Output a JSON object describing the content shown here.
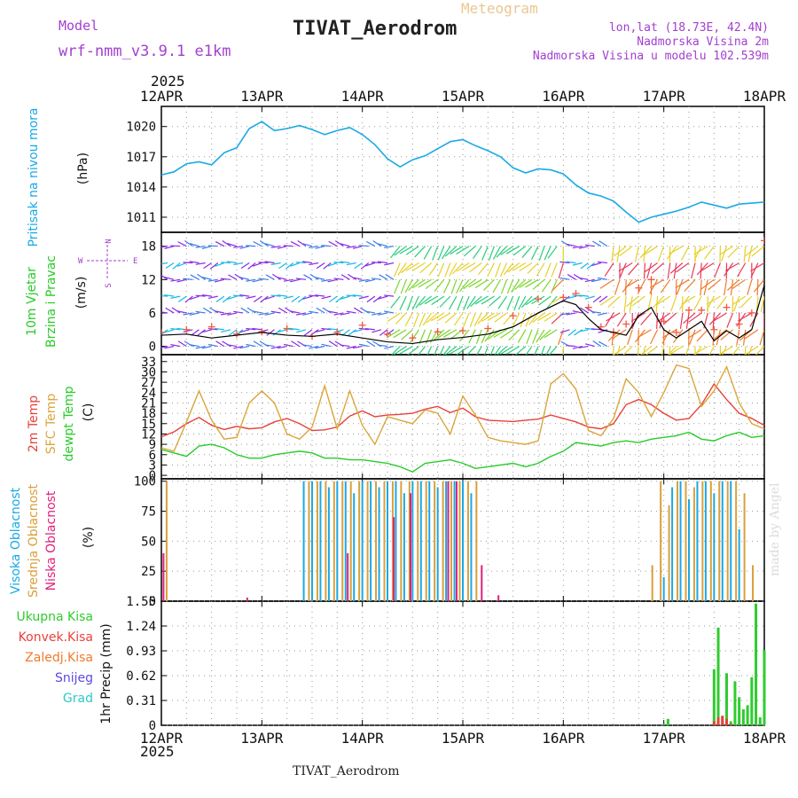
{
  "header": {
    "model_label": "Model",
    "model_name": "wrf-nmm_v3.9.1 e1km",
    "title": "TIVAT_Aerodrom",
    "meteogram_label": "Meteogram",
    "lonlat": "lon,lat (18.73E, 42.4N)",
    "altitude": "Nadmorska Visina 2m",
    "model_altitude": "Nadmorska Visina u modelu 102.539m",
    "year_label": "2025",
    "footer_title": "TIVAT_Aerodrom",
    "credit": "made by Angel"
  },
  "colors": {
    "pressure": "#19a9e6",
    "temp2m": "#e8413a",
    "sfctemp": "#dba63a",
    "dewpt": "#28cc28",
    "high_cloud": "#19a9e6",
    "mid_cloud": "#d9a03a",
    "low_cloud": "#e0207a",
    "total_rain": "#2ecc2e",
    "conv_rain": "#e8413a",
    "frz_rain": "#f07a2a",
    "snow": "#5a4ae0",
    "hail": "#2ec8c8",
    "gust": "#f05a40",
    "wind_speed": "#000000",
    "purple": "#a23fd0",
    "title_orange": "#e9c890"
  },
  "chart_data": [
    {
      "type": "line",
      "panel": "pressure",
      "ylabel": "Pritisak na nivou mora",
      "units": "(hPa)",
      "ylim": [
        1009.5,
        1022
      ],
      "yticks": [
        1011,
        1014,
        1017,
        1020
      ],
      "x_ticks": [
        "12APR",
        "13APR",
        "14APR",
        "15APR",
        "16APR",
        "17APR",
        "18APR"
      ],
      "grid": true,
      "x_hours": [
        0,
        3,
        6,
        9,
        12,
        15,
        18,
        21,
        24,
        27,
        30,
        33,
        36,
        39,
        42,
        45,
        48,
        51,
        54,
        57,
        60,
        63,
        66,
        69,
        72,
        75,
        78,
        81,
        84,
        87,
        90,
        93,
        96,
        99,
        102,
        105,
        108,
        111,
        114,
        117,
        120,
        123,
        126,
        129,
        132,
        135,
        138,
        141,
        144
      ],
      "values": [
        1015.2,
        1015.5,
        1016.3,
        1016.5,
        1016.2,
        1017.4,
        1017.9,
        1019.8,
        1020.5,
        1019.6,
        1019.8,
        1020.1,
        1019.7,
        1019.2,
        1019.6,
        1019.9,
        1019.2,
        1018.2,
        1016.8,
        1016.0,
        1016.7,
        1017.1,
        1017.8,
        1018.5,
        1018.7,
        1018.1,
        1017.6,
        1017.0,
        1015.9,
        1015.4,
        1015.8,
        1015.7,
        1015.3,
        1014.2,
        1013.4,
        1013.1,
        1012.6,
        1011.5,
        1010.5,
        1011.0,
        1011.3,
        1011.6,
        1012.0,
        1012.5,
        1012.2,
        1011.9,
        1012.3,
        1012.4,
        1012.5
      ]
    },
    {
      "type": "line",
      "panel": "wind",
      "ylabel": "10m Vjetar Brzina i Pravac",
      "units": "(m/s)",
      "ylim": [
        -1.5,
        20.5
      ],
      "yticks": [
        0,
        6,
        12,
        18
      ],
      "compass": {
        "n": "N",
        "s": "S",
        "e": "E",
        "w": "W"
      },
      "grid": true,
      "series": [
        {
          "name": "speed",
          "x_hours": [
            0,
            6,
            12,
            18,
            24,
            30,
            36,
            42,
            48,
            54,
            60,
            66,
            72,
            78,
            84,
            90,
            96,
            99,
            102,
            105,
            108,
            111,
            114,
            117,
            120,
            123,
            126,
            129,
            132,
            135,
            138,
            141,
            144
          ],
          "values": [
            2.0,
            2.2,
            1.5,
            2.0,
            2.5,
            2.0,
            1.8,
            2.2,
            1.5,
            0.8,
            0.5,
            1.2,
            1.6,
            2.2,
            3.5,
            6.0,
            8.2,
            7.5,
            5.0,
            3.0,
            2.5,
            2.0,
            5.5,
            7.0,
            3.0,
            1.5,
            3.0,
            4.5,
            1.0,
            2.8,
            1.5,
            3.0,
            11.0
          ]
        },
        {
          "name": "gust",
          "x_hours": [
            0,
            6,
            12,
            18,
            24,
            30,
            36,
            42,
            48,
            54,
            60,
            66,
            72,
            78,
            84,
            90,
            96,
            99,
            102,
            105,
            108,
            111,
            114,
            117,
            120,
            123,
            126,
            129,
            132,
            135,
            138,
            141,
            144
          ],
          "values": [
            2.5,
            3.0,
            3.5,
            2.2,
            2.6,
            3.2,
            1.8,
            2.5,
            3.8,
            2.2,
            1.5,
            2.6,
            2.8,
            3.2,
            5.5,
            8.5,
            8.8,
            9.5,
            7.0,
            3.5,
            2.5,
            4.0,
            10.5,
            12.0,
            4.5,
            2.5,
            6.5,
            6.5,
            3.0,
            7.0,
            4.0,
            6.0,
            19.0
          ]
        }
      ]
    },
    {
      "type": "line",
      "panel": "temperature",
      "ylabel": "2m Temp / SFC Temp / dewpt Temp",
      "units": "(C)",
      "ylim": [
        -1,
        35
      ],
      "yticks": [
        0,
        3,
        6,
        9,
        12,
        15,
        18,
        21,
        24,
        27,
        30,
        33
      ],
      "grid": true,
      "series": [
        {
          "name": "2m Temp",
          "x_hours": [
            0,
            3,
            6,
            9,
            12,
            15,
            18,
            21,
            24,
            27,
            30,
            33,
            36,
            39,
            42,
            45,
            48,
            51,
            54,
            57,
            60,
            63,
            66,
            69,
            72,
            75,
            78,
            81,
            84,
            87,
            90,
            93,
            96,
            99,
            102,
            105,
            108,
            111,
            114,
            117,
            120,
            123,
            126,
            129,
            132,
            135,
            138,
            141,
            144
          ],
          "values": [
            11.2,
            12.6,
            15.0,
            16.8,
            14.5,
            13.3,
            14.2,
            13.5,
            13.8,
            15.5,
            16.5,
            15.0,
            13.0,
            13.2,
            14.0,
            17.2,
            18.7,
            17.0,
            17.5,
            17.7,
            18.0,
            19.2,
            20.0,
            18.2,
            19.5,
            17.0,
            16.0,
            15.8,
            15.6,
            16.0,
            16.3,
            17.5,
            16.5,
            15.5,
            14.0,
            13.5,
            15.0,
            20.5,
            22.0,
            20.5,
            18.0,
            16.0,
            16.5,
            20.5,
            26.5,
            22.0,
            18.0,
            16.5,
            14.5
          ]
        },
        {
          "name": "SFC Temp",
          "x_hours": [
            0,
            3,
            6,
            9,
            12,
            15,
            18,
            21,
            24,
            27,
            30,
            33,
            36,
            39,
            42,
            45,
            48,
            51,
            54,
            57,
            60,
            63,
            66,
            69,
            72,
            75,
            78,
            81,
            84,
            87,
            90,
            93,
            96,
            99,
            102,
            105,
            108,
            111,
            114,
            117,
            120,
            123,
            126,
            129,
            132,
            135,
            138,
            141,
            144
          ],
          "values": [
            8.0,
            7.0,
            15.5,
            24.5,
            16.0,
            10.5,
            11.0,
            21.0,
            24.5,
            21.0,
            12.0,
            10.5,
            14.0,
            26.0,
            13.5,
            24.5,
            14.5,
            9.0,
            17.0,
            16.0,
            15.0,
            19.0,
            18.0,
            12.0,
            23.0,
            17.5,
            11.0,
            10.0,
            9.5,
            9.0,
            10.0,
            26.5,
            29.5,
            25.0,
            13.0,
            11.5,
            16.5,
            28.0,
            24.0,
            17.0,
            24.0,
            32.0,
            31.0,
            20.0,
            24.5,
            31.5,
            21.0,
            15.0,
            13.5
          ]
        },
        {
          "name": "dewpt Temp",
          "x_hours": [
            0,
            3,
            6,
            9,
            12,
            15,
            18,
            21,
            24,
            27,
            30,
            33,
            36,
            39,
            42,
            45,
            48,
            51,
            54,
            57,
            60,
            63,
            66,
            69,
            72,
            75,
            78,
            81,
            84,
            87,
            90,
            93,
            96,
            99,
            102,
            105,
            108,
            111,
            114,
            117,
            120,
            123,
            126,
            129,
            132,
            135,
            138,
            141,
            144
          ],
          "values": [
            7.5,
            6.5,
            5.5,
            8.5,
            9.0,
            8.0,
            6.0,
            5.0,
            5.0,
            6.0,
            6.5,
            7.0,
            6.5,
            5.0,
            5.0,
            4.5,
            4.5,
            4.0,
            3.5,
            2.5,
            1.0,
            3.5,
            4.0,
            4.5,
            3.5,
            2.0,
            2.5,
            3.0,
            3.5,
            2.5,
            3.5,
            5.5,
            7.0,
            9.5,
            9.0,
            8.5,
            9.5,
            10.0,
            9.5,
            10.5,
            11.0,
            11.5,
            12.5,
            10.5,
            10.0,
            11.5,
            12.5,
            11.0,
            11.5
          ]
        }
      ]
    },
    {
      "type": "bar",
      "panel": "cloud",
      "ylabel": "Visoka Oblacnost / Srednja Oblacnost / Niska Oblacnost",
      "units": "(%)",
      "ylim": [
        0,
        102
      ],
      "yticks": [
        0,
        25,
        50,
        75,
        100
      ],
      "grid": true,
      "series": [
        {
          "name": "Visoka Oblacnost",
          "x_hours": [
            34,
            36,
            38,
            40,
            42,
            44,
            46,
            48,
            50,
            52,
            54,
            56,
            58,
            60,
            62,
            64,
            66,
            68,
            70,
            72,
            74,
            120,
            122,
            124,
            126,
            128,
            130,
            132,
            134,
            136,
            138
          ],
          "values": [
            100,
            100,
            100,
            95,
            100,
            100,
            90,
            100,
            100,
            95,
            100,
            100,
            90,
            100,
            100,
            100,
            95,
            100,
            100,
            100,
            90,
            20,
            95,
            100,
            85,
            100,
            100,
            90,
            100,
            100,
            60
          ]
        },
        {
          "name": "Srednja Oblacnost",
          "x_hours": [
            1,
            35,
            37,
            39,
            41,
            43,
            45,
            47,
            49,
            51,
            53,
            55,
            57,
            59,
            61,
            63,
            65,
            67,
            69,
            71,
            73,
            75,
            117,
            119,
            121,
            123,
            125,
            127,
            129,
            131,
            133,
            135,
            137,
            139,
            141
          ],
          "values": [
            100,
            100,
            100,
            100,
            100,
            100,
            100,
            100,
            100,
            100,
            100,
            100,
            100,
            100,
            100,
            100,
            100,
            100,
            100,
            100,
            100,
            100,
            30,
            100,
            80,
            100,
            100,
            95,
            100,
            100,
            100,
            100,
            100,
            90,
            30
          ]
        },
        {
          "name": "Niska Oblacnost",
          "x_hours": [
            0,
            20,
            44,
            55,
            59,
            68,
            70,
            76,
            80
          ],
          "values": [
            40,
            3,
            40,
            70,
            90,
            100,
            100,
            30,
            5
          ]
        }
      ]
    },
    {
      "type": "bar",
      "panel": "precip",
      "ylabel": "1hr Precip",
      "units": "(mm)",
      "ylim": [
        0,
        1.55
      ],
      "yticks": [
        0,
        0.31,
        0.62,
        0.93,
        1.24,
        1.55
      ],
      "grid": true,
      "legend": [
        "Ukupna Kisa",
        "Konvek.Kisa",
        "Zaledj.Kisa",
        "Snijeg",
        "Grad"
      ],
      "series": [
        {
          "name": "Ukupna Kisa",
          "x_hours": [
            120,
            121,
            132,
            133,
            134,
            135,
            136,
            137,
            138,
            139,
            140,
            141,
            142,
            143,
            144
          ],
          "values": [
            0.02,
            0.08,
            0.7,
            1.22,
            0.1,
            0.65,
            0.05,
            0.55,
            0.35,
            0.2,
            0.25,
            0.6,
            1.52,
            0.1,
            0.94
          ]
        },
        {
          "name": "Konvek.Kisa",
          "x_hours": [
            132,
            133,
            134,
            135,
            136
          ],
          "values": [
            0.05,
            0.1,
            0.12,
            0.08,
            0.02
          ]
        }
      ]
    }
  ]
}
